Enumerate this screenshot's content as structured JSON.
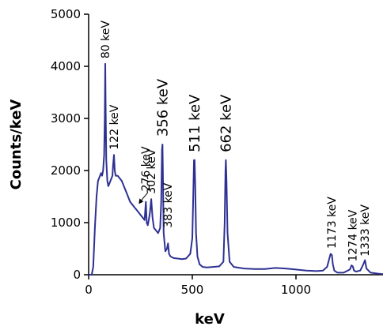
{
  "chart_data": {
    "type": "line",
    "title": "",
    "xlabel": "keV",
    "ylabel": "Counts/keV",
    "xlim": [
      0,
      1420
    ],
    "ylim": [
      0,
      5000
    ],
    "x_ticks": [
      0,
      500,
      1000
    ],
    "y_ticks": [
      0,
      1000,
      2000,
      3000,
      4000,
      5000
    ],
    "grid": false,
    "legend": "none",
    "series": [
      {
        "color": "#2e3192",
        "x": [
          0,
          15,
          22,
          30,
          38,
          45,
          50,
          55,
          60,
          65,
          70,
          75,
          78,
          80,
          82,
          85,
          90,
          95,
          100,
          105,
          110,
          115,
          118,
          122,
          126,
          130,
          140,
          150,
          160,
          170,
          180,
          190,
          200,
          210,
          220,
          230,
          240,
          250,
          260,
          270,
          276,
          280,
          285,
          290,
          296,
          302,
          308,
          315,
          325,
          335,
          345,
          350,
          354,
          356,
          358,
          362,
          370,
          378,
          383,
          388,
          395,
          410,
          430,
          450,
          470,
          490,
          500,
          505,
          508,
          511,
          514,
          518,
          525,
          535,
          550,
          570,
          600,
          630,
          650,
          656,
          660,
          662,
          665,
          670,
          680,
          700,
          750,
          800,
          850,
          900,
          950,
          1000,
          1050,
          1100,
          1130,
          1150,
          1160,
          1167,
          1173,
          1178,
          1185,
          1200,
          1230,
          1260,
          1268,
          1274,
          1280,
          1290,
          1310,
          1325,
          1333,
          1340,
          1360,
          1400,
          1420
        ],
        "y": [
          0,
          0,
          150,
          900,
          1500,
          1800,
          1850,
          1900,
          1950,
          1900,
          2000,
          2300,
          3000,
          4050,
          3200,
          2200,
          1800,
          1700,
          1750,
          1800,
          1850,
          1900,
          2100,
          2300,
          2000,
          1900,
          1900,
          1850,
          1800,
          1700,
          1600,
          1500,
          1400,
          1350,
          1300,
          1250,
          1200,
          1150,
          1100,
          1050,
          1400,
          1000,
          950,
          1050,
          1200,
          1450,
          1100,
          900,
          850,
          800,
          900,
          1400,
          2400,
          2500,
          2000,
          800,
          450,
          500,
          600,
          400,
          350,
          320,
          310,
          300,
          310,
          400,
          700,
          1600,
          2200,
          2200,
          1700,
          800,
          350,
          200,
          150,
          140,
          150,
          160,
          250,
          1000,
          2000,
          2200,
          1800,
          800,
          250,
          150,
          120,
          110,
          110,
          130,
          120,
          100,
          80,
          70,
          80,
          150,
          300,
          400,
          380,
          200,
          80,
          40,
          40,
          100,
          180,
          160,
          80,
          60,
          80,
          200,
          280,
          120,
          40,
          20,
          10
        ]
      }
    ],
    "annotations": [
      {
        "text": "80 keV",
        "x": 80,
        "y": 4150,
        "size": 14
      },
      {
        "text": "122 keV",
        "x": 122,
        "y": 2400,
        "size": 14
      },
      {
        "text": "276 keV",
        "x": 276,
        "y": 1600,
        "size": 14,
        "arrow": true
      },
      {
        "text": "302 keV",
        "x": 302,
        "y": 1550,
        "size": 14
      },
      {
        "text": "356 keV",
        "x": 356,
        "y": 2650,
        "size": 18
      },
      {
        "text": "383 keV",
        "x": 383,
        "y": 900,
        "size": 14
      },
      {
        "text": "511 keV",
        "x": 511,
        "y": 2350,
        "size": 18
      },
      {
        "text": "662 keV",
        "x": 662,
        "y": 2350,
        "size": 18
      },
      {
        "text": "1173 keV",
        "x": 1173,
        "y": 500,
        "size": 14
      },
      {
        "text": "1274 keV",
        "x": 1274,
        "y": 250,
        "size": 14
      },
      {
        "text": "1333 keV",
        "x": 1333,
        "y": 350,
        "size": 14
      }
    ]
  }
}
